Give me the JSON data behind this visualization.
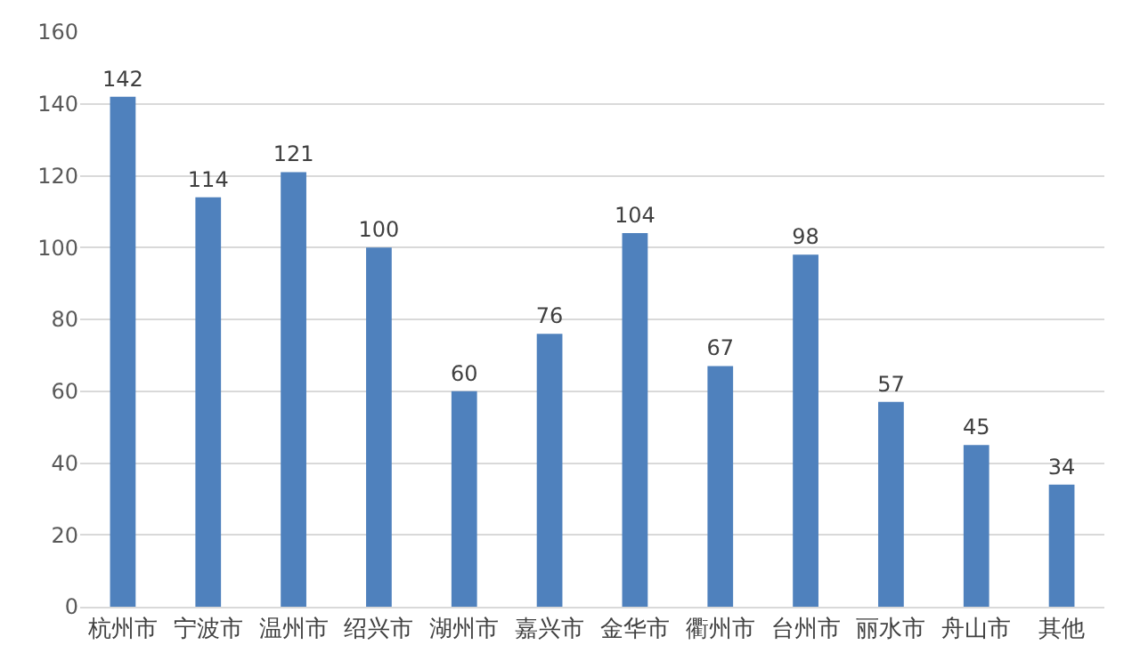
{
  "chart_data": {
    "type": "bar",
    "categories": [
      "杭州市",
      "宁波市",
      "温州市",
      "绍兴市",
      "湖州市",
      "嘉兴市",
      "金华市",
      "衢州市",
      "台州市",
      "丽水市",
      "舟山市",
      "其他"
    ],
    "values": [
      142,
      114,
      121,
      100,
      60,
      76,
      104,
      67,
      98,
      57,
      45,
      34
    ],
    "color": "#4f81bd",
    "ylim": [
      0,
      160
    ],
    "yticks": [
      0,
      20,
      40,
      60,
      80,
      100,
      120,
      140,
      160
    ],
    "grid": "y",
    "data_labels": true
  }
}
